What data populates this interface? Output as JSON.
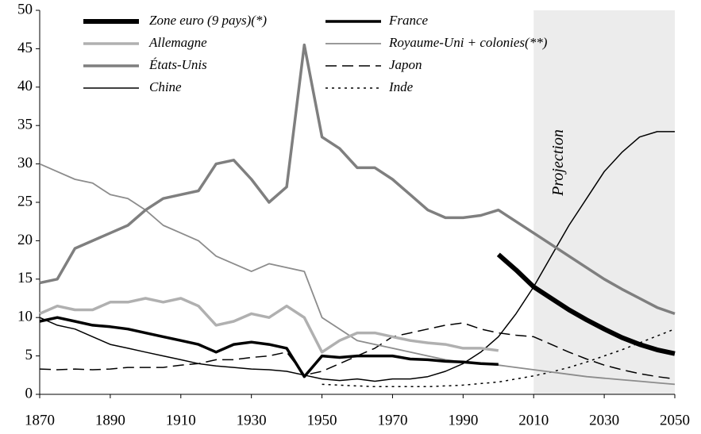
{
  "chart_data": {
    "type": "line",
    "x": [
      1870,
      1875,
      1880,
      1885,
      1890,
      1895,
      1900,
      1905,
      1910,
      1915,
      1920,
      1925,
      1930,
      1935,
      1940,
      1945,
      1950,
      1955,
      1960,
      1965,
      1970,
      1975,
      1980,
      1985,
      1990,
      1995,
      2000,
      2005,
      2010,
      2015,
      2020,
      2025,
      2030,
      2035,
      2040,
      2045,
      2050
    ],
    "xlim": [
      1870,
      2050
    ],
    "xticks": [
      1870,
      1890,
      1910,
      1930,
      1950,
      1970,
      1990,
      2010,
      2030,
      2050
    ],
    "ylim": [
      0,
      50
    ],
    "yticks": [
      0,
      5,
      10,
      15,
      20,
      25,
      30,
      35,
      40,
      45,
      50
    ],
    "shaded_region": {
      "label": "Projection",
      "xlim": [
        2010,
        2050
      ],
      "color": "#ececec"
    },
    "series": [
      {
        "name": "Zone euro (9 pays)(*)",
        "color": "#000000",
        "width": 6,
        "dash": "none",
        "values": [
          null,
          null,
          null,
          null,
          null,
          null,
          null,
          null,
          null,
          null,
          null,
          null,
          null,
          null,
          null,
          null,
          null,
          null,
          null,
          null,
          null,
          null,
          null,
          null,
          null,
          null,
          18.2,
          16.2,
          14,
          12.5,
          11,
          9.7,
          8.5,
          7.4,
          6.5,
          5.8,
          5.3
        ]
      },
      {
        "name": "France",
        "color": "#000000",
        "width": 3.5,
        "dash": "none",
        "values": [
          9.5,
          10,
          9.5,
          9,
          8.8,
          8.5,
          8,
          7.5,
          7,
          6.5,
          5.5,
          6.5,
          6.8,
          6.5,
          6,
          2.3,
          5,
          4.8,
          5,
          5,
          5,
          4.6,
          4.5,
          4.3,
          4.2,
          4,
          3.9,
          null,
          null,
          null,
          null,
          null,
          null,
          null,
          null,
          null,
          null
        ]
      },
      {
        "name": "Allemagne",
        "color": "#b0b0b0",
        "width": 3.5,
        "dash": "none",
        "values": [
          10.5,
          11.5,
          11,
          11,
          12,
          12,
          12.5,
          12,
          12.5,
          11.5,
          9,
          9.5,
          10.5,
          10,
          11.5,
          10,
          5.5,
          7,
          8,
          8,
          7.5,
          7,
          6.7,
          6.5,
          6,
          6,
          5.7,
          null,
          null,
          null,
          null,
          null,
          null,
          null,
          null,
          null,
          null
        ]
      },
      {
        "name": "Royaume-Uni + colonies(**)",
        "color": "#8c8c8c",
        "width": 1.8,
        "dash": "none",
        "values": [
          30,
          29,
          28,
          27.5,
          26,
          25.5,
          24,
          22,
          21,
          20,
          18,
          17,
          16,
          17,
          16.5,
          16,
          10,
          8.5,
          7,
          6.5,
          6,
          5.5,
          5,
          4.5,
          4.2,
          4,
          3.8,
          3.5,
          3.2,
          2.9,
          2.6,
          2.3,
          2.1,
          1.9,
          1.7,
          1.5,
          1.3
        ]
      },
      {
        "name": "États-Unis",
        "color": "#7f7f7f",
        "width": 3.5,
        "dash": "none",
        "values": [
          14.5,
          15,
          19,
          20,
          21,
          22,
          24,
          25.5,
          26,
          26.5,
          30,
          30.5,
          28,
          25,
          27,
          45.5,
          33.5,
          32,
          29.5,
          29.5,
          28,
          26,
          24,
          23,
          23,
          23.3,
          24,
          22.5,
          21,
          19.5,
          18,
          16.5,
          15,
          13.7,
          12.5,
          11.3,
          10.5
        ]
      },
      {
        "name": "Japon",
        "color": "#000000",
        "width": 1.5,
        "dash": "14 7",
        "values": [
          3.3,
          3.2,
          3.3,
          3.2,
          3.3,
          3.5,
          3.5,
          3.5,
          3.8,
          4,
          4.5,
          4.5,
          4.8,
          5,
          5.5,
          2.5,
          3,
          4,
          5,
          6,
          7.5,
          8,
          8.5,
          9,
          9.3,
          8.5,
          8,
          7.7,
          7.5,
          6.5,
          5.5,
          4.6,
          3.8,
          3.2,
          2.7,
          2.3,
          2
        ]
      },
      {
        "name": "Chine",
        "color": "#000000",
        "width": 1.5,
        "dash": "none",
        "values": [
          10,
          9,
          8.5,
          7.5,
          6.5,
          6,
          5.5,
          5,
          4.5,
          4,
          3.7,
          3.5,
          3.3,
          3.2,
          3,
          2.5,
          2,
          1.8,
          2,
          1.7,
          2,
          2,
          2.3,
          3,
          4,
          5.5,
          7.5,
          10.5,
          14,
          18,
          22,
          25.5,
          29,
          31.5,
          33.5,
          34.2,
          34.2
        ]
      },
      {
        "name": "Inde",
        "color": "#000000",
        "width": 1.5,
        "dash": "3 5",
        "values": [
          null,
          null,
          null,
          null,
          null,
          null,
          null,
          null,
          null,
          null,
          null,
          null,
          null,
          null,
          null,
          null,
          1.3,
          1.2,
          1.1,
          1,
          1,
          1,
          1,
          1.1,
          1.2,
          1.4,
          1.6,
          2,
          2.4,
          2.9,
          3.5,
          4.2,
          5,
          5.8,
          6.7,
          7.6,
          8.5
        ]
      }
    ]
  }
}
